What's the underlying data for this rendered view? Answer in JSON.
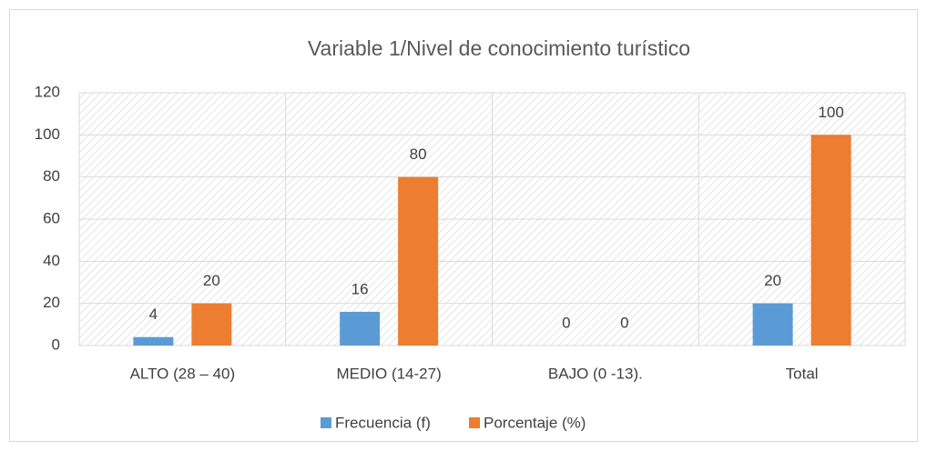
{
  "chart_data": {
    "type": "bar",
    "title": "Variable 1/Nivel de conocimiento turístico",
    "categories": [
      "ALTO (28 – 40)",
      "MEDIO (14-27)",
      "BAJO (0 -13).",
      "Total"
    ],
    "series": [
      {
        "name": "Frecuencia (f)",
        "color": "#5b9bd5",
        "values": [
          4,
          16,
          0,
          20
        ]
      },
      {
        "name": "Porcentaje (%)",
        "color": "#ed7d31",
        "values": [
          20,
          80,
          0,
          100
        ]
      }
    ],
    "ylim": [
      0,
      120
    ],
    "yticks": [
      0,
      20,
      40,
      60,
      80,
      100,
      120
    ],
    "grid": true,
    "legend": "bottom"
  }
}
